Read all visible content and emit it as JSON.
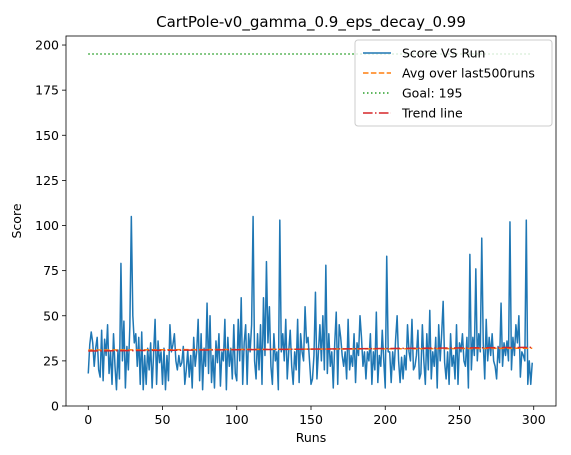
{
  "chart_data": {
    "type": "line",
    "title": "CartPole-v0_gamma_0.9_eps_decay_0.99",
    "xlabel": "Runs",
    "ylabel": "Score",
    "xlim": [
      -15,
      315
    ],
    "ylim": [
      0,
      205
    ],
    "xticks": [
      0,
      50,
      100,
      150,
      200,
      250,
      300
    ],
    "yticks": [
      0,
      25,
      50,
      75,
      100,
      125,
      150,
      175,
      200
    ],
    "grid": false,
    "legend_position": "top-right",
    "series": [
      {
        "name": "Score VS Run",
        "style": "solid",
        "color": "#1f77b4",
        "x_start": 0,
        "values": [
          18,
          34,
          41,
          35,
          22,
          32,
          38,
          20,
          16,
          42,
          14,
          37,
          28,
          45,
          18,
          30,
          12,
          40,
          22,
          9,
          31,
          15,
          79,
          25,
          47,
          10,
          33,
          20,
          44,
          105,
          50,
          35,
          40,
          22,
          38,
          12,
          41,
          9,
          28,
          12,
          32,
          20,
          35,
          10,
          29,
          48,
          12,
          36,
          24,
          30,
          12,
          32,
          9,
          28,
          14,
          45,
          30,
          34,
          40,
          25,
          20,
          28,
          22,
          24,
          33,
          12,
          20,
          31,
          16,
          28,
          10,
          38,
          22,
          30,
          48,
          14,
          40,
          9,
          32,
          22,
          57,
          18,
          50,
          13,
          28,
          10,
          36,
          24,
          40,
          11,
          30,
          25,
          48,
          9,
          38,
          22,
          32,
          15,
          45,
          18,
          14,
          48,
          25,
          60,
          12,
          35,
          45,
          12,
          40,
          30,
          45,
          105,
          25,
          15,
          40,
          20,
          45,
          12,
          60,
          28,
          80,
          35,
          55,
          22,
          12,
          40,
          25,
          30,
          9,
          103,
          30,
          40,
          25,
          48,
          15,
          30,
          42,
          22,
          12,
          30,
          20,
          48,
          13,
          40,
          30,
          25,
          55,
          35,
          38,
          25,
          12,
          15,
          28,
          63,
          15,
          30,
          45,
          25,
          50,
          20,
          78,
          18,
          40,
          22,
          30,
          10,
          35,
          52,
          12,
          45,
          38,
          28,
          22,
          30,
          15,
          48,
          20,
          28,
          22,
          40,
          13,
          35,
          28,
          50,
          38,
          22,
          30,
          15,
          30,
          25,
          40,
          12,
          30,
          20,
          52,
          13,
          28,
          22,
          42,
          25,
          10,
          83,
          30,
          30,
          13,
          30,
          20,
          37,
          50,
          25,
          13,
          27,
          15,
          28,
          20,
          45,
          30,
          25,
          48,
          20,
          22,
          28,
          42,
          15,
          18,
          45,
          25,
          12,
          40,
          20,
          53,
          15,
          30,
          22,
          38,
          10,
          45,
          25,
          40,
          58,
          24,
          15,
          30,
          12,
          40,
          22,
          28,
          15,
          45,
          12,
          35,
          30,
          40,
          25,
          22,
          38,
          10,
          84,
          20,
          38,
          28,
          76,
          25,
          40,
          30,
          93,
          35,
          15,
          48,
          25,
          38,
          28,
          40,
          25,
          22,
          15,
          33,
          24,
          57,
          22,
          35,
          28,
          36,
          25,
          102,
          20,
          38,
          28,
          45,
          35,
          50,
          16,
          30,
          28,
          25,
          103,
          12,
          25,
          12,
          24
        ],
        "count": 300
      },
      {
        "name": "Avg over last500runs",
        "style": "dashed",
        "color": "#ff7f0e",
        "x": [
          0,
          299
        ],
        "y": [
          31,
          32
        ]
      },
      {
        "name": "Goal: 195",
        "style": "dotted",
        "color": "#2ca02c",
        "x": [
          0,
          299
        ],
        "y": [
          195,
          195
        ]
      },
      {
        "name": "Trend line",
        "style": "dashdot",
        "color": "#d62728",
        "x": [
          0,
          299
        ],
        "y": [
          30.5,
          32.5
        ]
      }
    ]
  }
}
